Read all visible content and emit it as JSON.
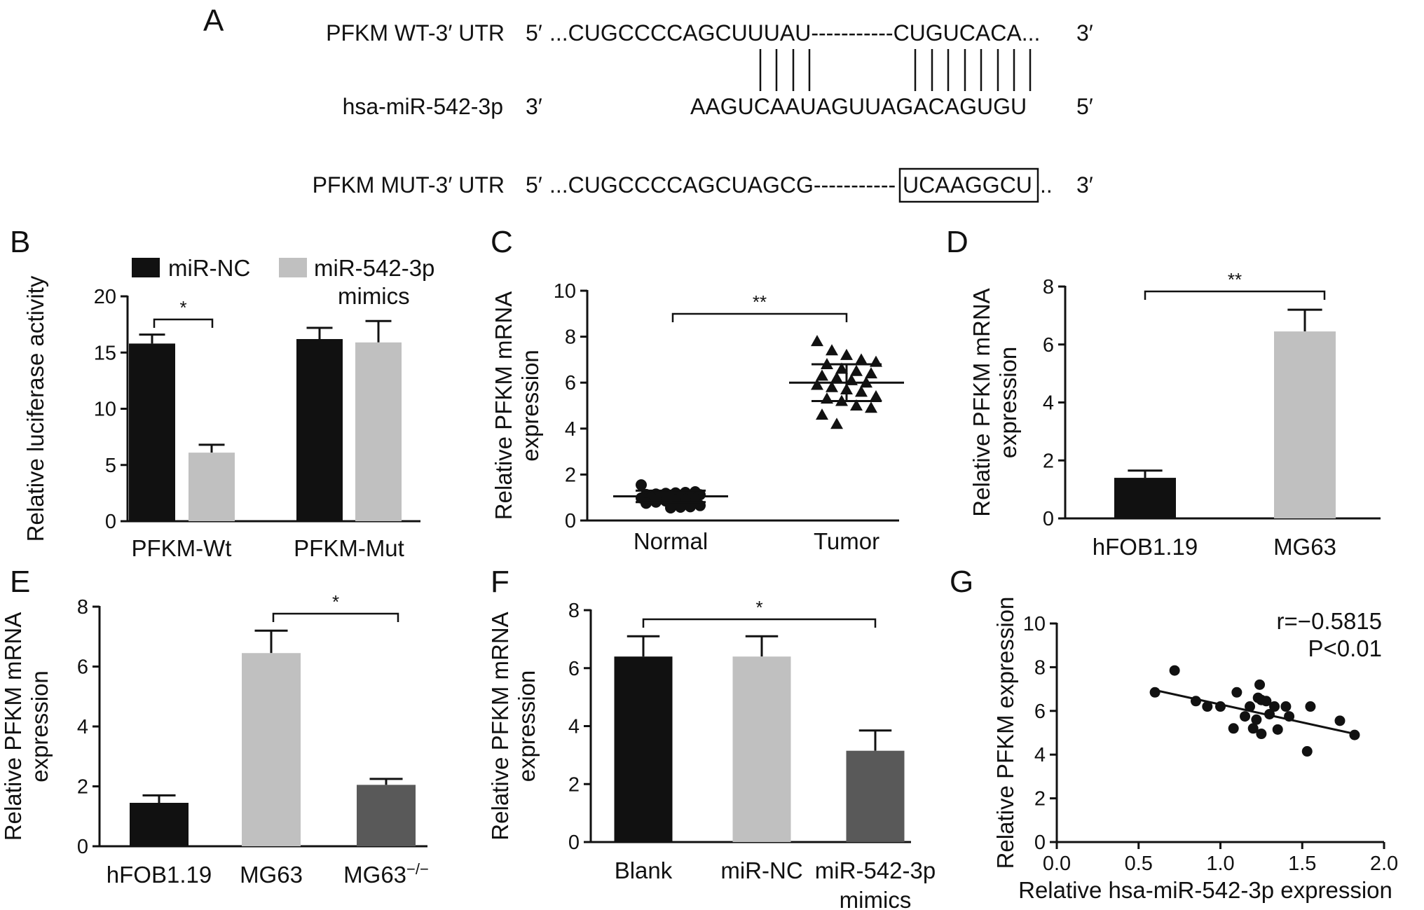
{
  "panel_a": {
    "letter": "A",
    "wt_label": "PFKM WT-3′ UTR",
    "wt_five": "5′",
    "wt_seq": "...CUGCCCCAGCUUUAU-----------CUGUCACA...",
    "wt_three": "3′",
    "mir_label": "hsa-miR-542-3p",
    "mir_three": "3′",
    "mir_seq": "AAGUCAAUAGUUAGACAGUGU",
    "mir_five": "5′",
    "mut_label": "PFKM MUT-3′ UTR",
    "mut_five": "5′",
    "mut_seq": "...CUGCCCCAGCUAGCG-----------",
    "mut_boxed": "UCAAGGCU",
    "mut_tail": "..",
    "mut_three": "3′"
  },
  "colors": {
    "black": "#111111",
    "light_gray": "#c0c0c0",
    "dark_gray": "#595959"
  },
  "chart_data": [
    {
      "panel": "B",
      "type": "bar",
      "ylabel": "Relative luciferase activity",
      "categories": [
        "PFKM-Wt",
        "PFKM-Mut"
      ],
      "series": [
        {
          "name": "miR-NC",
          "values": [
            15.8,
            16.2
          ],
          "errors": [
            0.8,
            1.0
          ],
          "color": "#111111"
        },
        {
          "name": "miR-542-3p mimics",
          "values": [
            6.1,
            15.9
          ],
          "errors": [
            0.7,
            1.9
          ],
          "color": "#c0c0c0"
        }
      ],
      "legend": [
        "miR-NC",
        "miR-542-3p",
        "mimics"
      ],
      "ylim": [
        0,
        20
      ],
      "yticks": [
        "0",
        "5",
        "10",
        "15",
        "20"
      ],
      "significance": "*"
    },
    {
      "panel": "C",
      "type": "scatter",
      "ylabel": [
        "Relative PFKM mRNA",
        "expression"
      ],
      "categories": [
        "Normal",
        "Tumor"
      ],
      "normal_values": [
        1.55,
        1.25,
        1.22,
        1.2,
        1.18,
        1.15,
        1.13,
        1.12,
        1.1,
        1.08,
        1.05,
        1.02,
        1.0,
        0.98,
        0.95,
        0.92,
        0.9,
        0.85,
        0.8,
        0.75,
        0.65,
        0.6,
        0.58,
        0.55
      ],
      "normal_mean": 1.05,
      "normal_sd": 0.25,
      "tumor_values": [
        7.8,
        7.4,
        7.2,
        7.0,
        6.9,
        6.8,
        6.6,
        6.5,
        6.4,
        6.3,
        6.2,
        6.1,
        6.0,
        5.9,
        5.8,
        5.7,
        5.6,
        5.4,
        5.3,
        5.2,
        5.0,
        4.9,
        4.6,
        4.2
      ],
      "tumor_mean": 6.0,
      "tumor_sd": 0.8,
      "ylim": [
        0,
        10
      ],
      "yticks": [
        "0",
        "2",
        "4",
        "6",
        "8",
        "10"
      ],
      "significance": "**"
    },
    {
      "panel": "D",
      "type": "bar",
      "ylabel": [
        "Relative PFKM mRNA",
        "expression"
      ],
      "categories": [
        "hFOB1.19",
        "MG63"
      ],
      "values": [
        1.4,
        6.45
      ],
      "errors": [
        0.25,
        0.75
      ],
      "colors": [
        "#111111",
        "#c0c0c0"
      ],
      "ylim": [
        0,
        8
      ],
      "yticks": [
        "0",
        "2",
        "4",
        "6",
        "8"
      ],
      "significance": "**"
    },
    {
      "panel": "E",
      "type": "bar",
      "ylabel": [
        "Relative PFKM mRNA",
        "expression"
      ],
      "categories": [
        "hFOB1.19",
        "MG63",
        "MG63"
      ],
      "category_superscripts": [
        "",
        "",
        "−/−"
      ],
      "values": [
        1.45,
        6.45,
        2.05
      ],
      "errors": [
        0.25,
        0.75,
        0.2
      ],
      "colors": [
        "#111111",
        "#c0c0c0",
        "#595959"
      ],
      "ylim": [
        0,
        8
      ],
      "yticks": [
        "0",
        "2",
        "4",
        "6",
        "8"
      ],
      "significance": "*"
    },
    {
      "panel": "F",
      "type": "bar",
      "ylabel": [
        "Relative PFKM mRNA",
        "expression"
      ],
      "categories": [
        "Blank",
        "miR-NC",
        "miR-542-3p mimics"
      ],
      "category_lines": [
        [
          "Blank"
        ],
        [
          "miR-NC"
        ],
        [
          "miR-542-3p",
          "mimics"
        ]
      ],
      "values": [
        6.4,
        6.4,
        3.15
      ],
      "errors": [
        0.7,
        0.7,
        0.7
      ],
      "colors": [
        "#111111",
        "#c0c0c0",
        "#595959"
      ],
      "ylim": [
        0,
        8
      ],
      "yticks": [
        "0",
        "2",
        "4",
        "6",
        "8"
      ],
      "significance": "*"
    },
    {
      "panel": "G",
      "type": "scatter",
      "xlabel": "Relative hsa-miR-542-3p expression",
      "ylabel": "Relative PFKM expression",
      "points": [
        [
          0.6,
          6.85
        ],
        [
          0.72,
          7.85
        ],
        [
          0.85,
          6.45
        ],
        [
          0.92,
          6.2
        ],
        [
          1.0,
          6.2
        ],
        [
          1.08,
          5.2
        ],
        [
          1.1,
          6.85
        ],
        [
          1.15,
          5.75
        ],
        [
          1.18,
          6.2
        ],
        [
          1.2,
          5.2
        ],
        [
          1.22,
          5.6
        ],
        [
          1.23,
          6.6
        ],
        [
          1.24,
          7.2
        ],
        [
          1.25,
          6.5
        ],
        [
          1.25,
          4.95
        ],
        [
          1.28,
          6.45
        ],
        [
          1.3,
          5.85
        ],
        [
          1.33,
          6.2
        ],
        [
          1.35,
          5.15
        ],
        [
          1.4,
          6.2
        ],
        [
          1.42,
          5.75
        ],
        [
          1.53,
          4.15
        ],
        [
          1.55,
          6.2
        ],
        [
          1.73,
          5.55
        ],
        [
          1.82,
          4.9
        ]
      ],
      "fit": {
        "x": [
          0.6,
          1.82
        ],
        "y": [
          6.95,
          4.95
        ]
      },
      "xlim": [
        0.0,
        2.0
      ],
      "ylim": [
        0,
        10
      ],
      "xticks": [
        "0.0",
        "0.5",
        "1.0",
        "1.5",
        "2.0"
      ],
      "yticks": [
        "0",
        "2",
        "4",
        "6",
        "8",
        "10"
      ],
      "annotation": [
        "r=−0.5815",
        "P<0.01"
      ]
    }
  ]
}
